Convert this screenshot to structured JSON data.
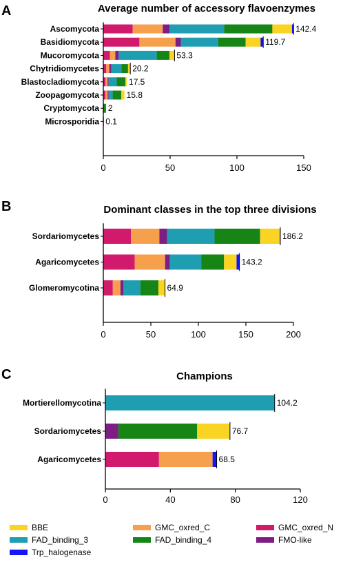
{
  "colors": {
    "BBE": "#F9D423",
    "FAD_binding_3": "#1F9EB2",
    "Trp_halogenase": "#1515F5",
    "GMC_oxred_C": "#F6A04E",
    "FAD_binding_4": "#168516",
    "GMC_oxred_N": "#D21A6C",
    "FMO-like": "#7E1E85"
  },
  "legend": [
    {
      "key": "BBE",
      "label": "BBE"
    },
    {
      "key": "GMC_oxred_C",
      "label": "GMC_oxred_C"
    },
    {
      "key": "GMC_oxred_N",
      "label": "GMC_oxred_N"
    },
    {
      "key": "FAD_binding_3",
      "label": "FAD_binding_3"
    },
    {
      "key": "FAD_binding_4",
      "label": "FAD_binding_4"
    },
    {
      "key": "FMO-like",
      "label": "FMO-like"
    },
    {
      "key": "Trp_halogenase",
      "label": "Trp_halogenase"
    }
  ],
  "chart_data": [
    {
      "panel_label": "A",
      "type": "bar",
      "orientation": "horizontal",
      "stacked": true,
      "title": "Average number of accessory flavoenzymes",
      "xlim": [
        0,
        150
      ],
      "xticks": [
        0,
        50,
        100,
        150
      ],
      "series_order": [
        "GMC_oxred_N",
        "GMC_oxred_C",
        "FMO-like",
        "FAD_binding_3",
        "FAD_binding_4",
        "BBE",
        "Trp_halogenase"
      ],
      "categories": [
        "Ascomycota",
        "Basidiomycota",
        "Mucoromycota",
        "Chytridiomycetes",
        "Blastocladiomycota",
        "Zoopagomycota",
        "Cryptomycota",
        "Microsporidia"
      ],
      "series": [
        {
          "key": "GMC_oxred_N",
          "values": [
            22,
            27,
            5,
            2.2,
            1.6,
            1.6,
            0,
            0
          ]
        },
        {
          "key": "GMC_oxred_C",
          "values": [
            22.5,
            27,
            4,
            2.3,
            1.6,
            1.6,
            0,
            0
          ]
        },
        {
          "key": "FMO-like",
          "values": [
            5,
            4,
            2.5,
            1.5,
            0.8,
            0.8,
            0,
            0
          ]
        },
        {
          "key": "FAD_binding_3",
          "values": [
            41,
            28,
            28.5,
            7.5,
            6,
            3,
            0,
            0
          ]
        },
        {
          "key": "FAD_binding_4",
          "values": [
            36,
            20.5,
            9.5,
            5,
            6.5,
            6.5,
            2,
            0.1
          ]
        },
        {
          "key": "BBE",
          "values": [
            14.7,
            11.2,
            3.8,
            1.7,
            1,
            2.3,
            0,
            0
          ]
        },
        {
          "key": "Trp_halogenase",
          "values": [
            1.2,
            2,
            0,
            0,
            0,
            0,
            0,
            0
          ]
        }
      ],
      "totals": [
        "142.4",
        "119.7",
        "53.3",
        "20.2",
        "17.5",
        "15.8",
        "2",
        "0.1"
      ]
    },
    {
      "panel_label": "B",
      "type": "bar",
      "orientation": "horizontal",
      "stacked": true,
      "title": "Dominant classes in the top three divisions",
      "xlim": [
        0,
        200
      ],
      "xticks": [
        0,
        50,
        100,
        150,
        200
      ],
      "series_order": [
        "GMC_oxred_N",
        "GMC_oxred_C",
        "FMO-like",
        "FAD_binding_3",
        "FAD_binding_4",
        "BBE",
        "Trp_halogenase"
      ],
      "categories": [
        "Sordariomycetes",
        "Agaricomycetes",
        "Glomeromycotina"
      ],
      "series": [
        {
          "key": "GMC_oxred_N",
          "values": [
            29,
            33,
            10
          ]
        },
        {
          "key": "GMC_oxred_C",
          "values": [
            30,
            32,
            8
          ]
        },
        {
          "key": "FMO-like",
          "values": [
            8,
            5,
            3
          ]
        },
        {
          "key": "FAD_binding_3",
          "values": [
            50,
            33,
            18
          ]
        },
        {
          "key": "FAD_binding_4",
          "values": [
            48,
            24,
            19
          ]
        },
        {
          "key": "BBE",
          "values": [
            20.7,
            13.2,
            6.9
          ]
        },
        {
          "key": "Trp_halogenase",
          "values": [
            0.5,
            3,
            0
          ]
        }
      ],
      "totals": [
        "186.2",
        "143.2",
        "64.9"
      ]
    },
    {
      "panel_label": "C",
      "type": "bar",
      "orientation": "horizontal",
      "stacked": true,
      "title": "Champions",
      "xlim": [
        0,
        120
      ],
      "xticks": [
        0,
        40,
        80,
        120
      ],
      "series_order": [
        "GMC_oxred_N",
        "GMC_oxred_C",
        "FMO-like",
        "FAD_binding_3",
        "FAD_binding_4",
        "BBE",
        "Trp_halogenase"
      ],
      "categories": [
        "Mortierellomycotina",
        "Sordariomycetes",
        "Agaricomycetes"
      ],
      "series": [
        {
          "key": "GMC_oxred_N",
          "values": [
            0,
            0,
            33
          ]
        },
        {
          "key": "GMC_oxred_C",
          "values": [
            0,
            0,
            33
          ]
        },
        {
          "key": "FMO-like",
          "values": [
            0,
            8,
            0
          ]
        },
        {
          "key": "FAD_binding_3",
          "values": [
            104.2,
            0,
            0
          ]
        },
        {
          "key": "FAD_binding_4",
          "values": [
            0,
            48.5,
            0
          ]
        },
        {
          "key": "BBE",
          "values": [
            0,
            20.2,
            0
          ]
        },
        {
          "key": "Trp_halogenase",
          "values": [
            0,
            0,
            2.5
          ]
        }
      ],
      "totals": [
        "104.2",
        "76.7",
        "68.5"
      ]
    }
  ]
}
